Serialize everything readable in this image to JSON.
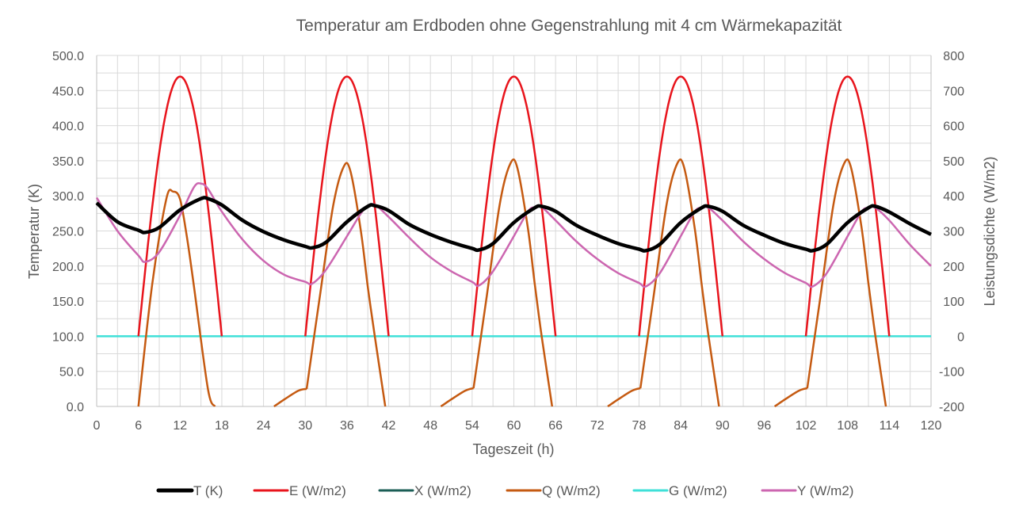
{
  "chart_data": {
    "type": "line",
    "title": "Temperatur am Erdboden ohne Gegenstrahlung mit 4 cm Wärmekapazität",
    "xlabel": "Tageszeit (h)",
    "ylabel": "Temperatur (K)",
    "y2label": "Leistungsdichte  (W/m2)",
    "xlim": [
      0,
      120
    ],
    "ylim": [
      0,
      500
    ],
    "y2lim": [
      -200,
      800
    ],
    "xticks": [
      "0",
      "6",
      "12",
      "18",
      "24",
      "30",
      "36",
      "42",
      "48",
      "54",
      "60",
      "66",
      "72",
      "78",
      "84",
      "90",
      "96",
      "102",
      "108",
      "114",
      "120"
    ],
    "yticks": [
      "0.0",
      "50.0",
      "100.0",
      "150.0",
      "200.0",
      "250.0",
      "300.0",
      "350.0",
      "400.0",
      "450.0",
      "500.0"
    ],
    "y2ticks": [
      "-200",
      "-100",
      "0",
      "100",
      "200",
      "300",
      "400",
      "500",
      "600",
      "700",
      "800"
    ],
    "grid": true,
    "legend_position": "bottom",
    "series": [
      {
        "name": "T (K)",
        "axis": "left",
        "color": "#000000",
        "x": [
          0,
          3,
          6,
          7,
          9,
          12,
          15,
          16,
          18,
          21,
          24,
          27,
          30,
          31,
          33,
          36,
          39,
          40,
          42,
          45,
          48,
          51,
          54,
          55,
          57,
          60,
          63,
          64,
          66,
          69,
          72,
          75,
          78,
          79,
          81,
          84,
          87,
          88,
          90,
          93,
          96,
          99,
          102,
          103,
          105,
          108,
          111,
          112,
          114,
          117,
          120
        ],
        "y": [
          290,
          263,
          251,
          248,
          255,
          280,
          296,
          296,
          287,
          265,
          249,
          237,
          228,
          226,
          234,
          263,
          285,
          286,
          279,
          259,
          245,
          234,
          225,
          223,
          232,
          262,
          283,
          285,
          278,
          258,
          244,
          232,
          224,
          222,
          231,
          262,
          283,
          285,
          278,
          258,
          244,
          232,
          224,
          222,
          231,
          262,
          283,
          285,
          277,
          260,
          245
        ]
      },
      {
        "name": "E (W/m2)",
        "axis": "right",
        "color": "#e8141c",
        "formula": "E = 740*sin(pi*(t-6)/12) for daylight t between 6 and 18 (mod 24), shown only where >= 0"
      },
      {
        "name": "X (W/m2)",
        "axis": "right",
        "color": "#1b5e56",
        "values": "not visible"
      },
      {
        "name": "Q (W/m2)",
        "axis": "right",
        "color": "#c55a11",
        "segments": [
          {
            "x": [
              6,
              8,
              10,
              11,
              12,
              13,
              14,
              16,
              17
            ],
            "y": [
              -200,
              150,
              390,
              412,
              390,
              280,
              140,
              -150,
              -200
            ]
          },
          {
            "x": [
              25.5,
              27,
              29,
              30.2
            ],
            "y": [
              -200,
              -180,
              -155,
              -150
            ]
          },
          {
            "x": [
              30.2,
              32,
              34,
              35.5,
              36.5,
              38,
              39,
              40,
              41.5
            ],
            "y": [
              -150,
              100,
              370,
              482,
              470,
              300,
              140,
              0,
              -200
            ]
          },
          {
            "x": [
              49.5,
              51,
              53,
              54.2
            ],
            "y": [
              -200,
              -180,
              -155,
              -148
            ]
          },
          {
            "x": [
              54.2,
              56,
              58,
              59.5,
              60.5,
              62,
              63,
              64,
              65.5
            ],
            "y": [
              -148,
              100,
              380,
              492,
              480,
              310,
              150,
              0,
              -200
            ]
          },
          {
            "x": [
              73.5,
              75,
              77,
              78.2
            ],
            "y": [
              -200,
              -180,
              -155,
              -148
            ]
          },
          {
            "x": [
              78.2,
              80,
              82,
              83.5,
              84.5,
              86,
              87,
              88,
              89.5
            ],
            "y": [
              -148,
              100,
              380,
              492,
              480,
              310,
              150,
              0,
              -200
            ]
          },
          {
            "x": [
              97.5,
              99,
              101,
              102.2
            ],
            "y": [
              -200,
              -180,
              -155,
              -148
            ]
          },
          {
            "x": [
              102.2,
              104,
              106,
              107.5,
              108.5,
              110,
              111,
              112,
              113.5
            ],
            "y": [
              -148,
              100,
              380,
              492,
              480,
              310,
              150,
              0,
              -200
            ]
          }
        ]
      },
      {
        "name": "G (W/m2)",
        "axis": "right",
        "color": "#3fe0d8",
        "x": [
          0,
          120
        ],
        "y": [
          0,
          0
        ]
      },
      {
        "name": "Y (W/m2)",
        "axis": "right",
        "color": "#cc66b0",
        "x": [
          0,
          3,
          6,
          7,
          9,
          12,
          14,
          15,
          16,
          18,
          21,
          24,
          27,
          30,
          31,
          33,
          36,
          38,
          39,
          40,
          42,
          45,
          48,
          51,
          54,
          55,
          57,
          60,
          62,
          63,
          64,
          66,
          69,
          72,
          75,
          78,
          79,
          81,
          84,
          86,
          87,
          88,
          90,
          93,
          96,
          99,
          102,
          103,
          105,
          108,
          110,
          111,
          112,
          114,
          117,
          120
        ],
        "y": [
          395,
          300,
          230,
          212,
          240,
          345,
          425,
          435,
          420,
          355,
          275,
          215,
          175,
          155,
          150,
          190,
          285,
          350,
          370,
          375,
          340,
          280,
          225,
          185,
          155,
          145,
          185,
          285,
          355,
          368,
          368,
          330,
          270,
          220,
          180,
          152,
          142,
          180,
          285,
          355,
          366,
          366,
          330,
          270,
          220,
          180,
          152,
          142,
          180,
          285,
          355,
          366,
          366,
          330,
          260,
          200
        ]
      }
    ]
  },
  "legend": [
    {
      "label": "T (K)",
      "color": "#000000",
      "width": 5
    },
    {
      "label": "E (W/m2)",
      "color": "#e8141c",
      "width": 3
    },
    {
      "label": "X (W/m2)",
      "color": "#1b5e56",
      "width": 3
    },
    {
      "label": "Q (W/m2)",
      "color": "#c55a11",
      "width": 3
    },
    {
      "label": "G (W/m2)",
      "color": "#3fe0d8",
      "width": 3
    },
    {
      "label": "Y (W/m2)",
      "color": "#cc66b0",
      "width": 3
    }
  ]
}
